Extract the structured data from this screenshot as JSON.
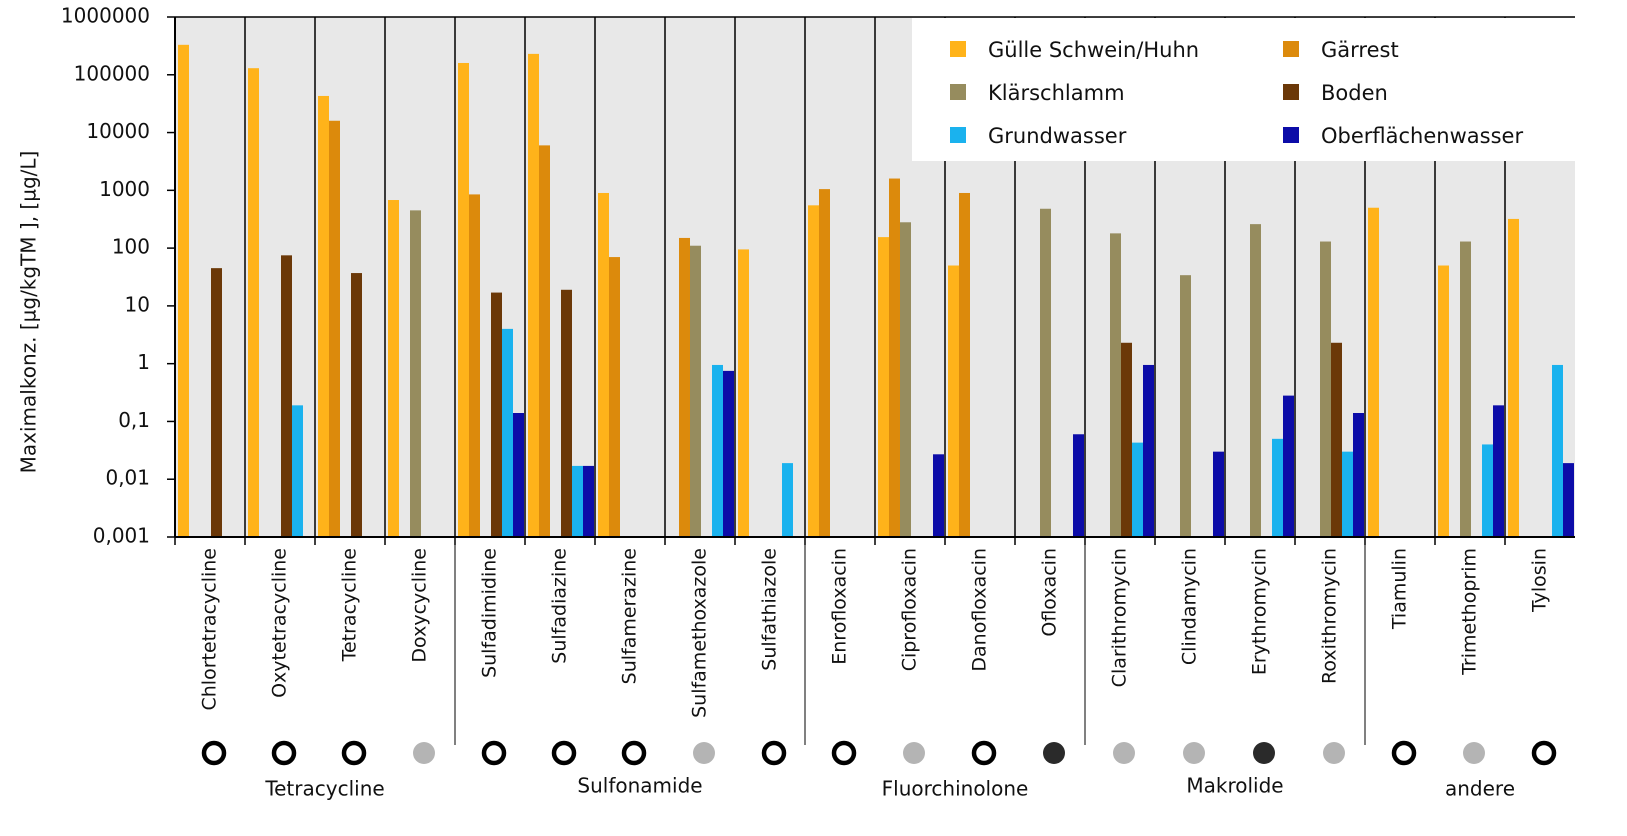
{
  "chart_data": {
    "type": "bar",
    "y_label": "Maximalkonz. [µg/kgTM ], [µg/L]",
    "log_scale": true,
    "ylim": [
      0.001,
      1000000
    ],
    "yticks": [
      1000000,
      100000,
      10000,
      1000,
      100,
      10,
      1,
      {
        "value": 0.1,
        "label": "0,1"
      },
      {
        "value": 0.01,
        "label": "0,01"
      },
      {
        "value": 0.001,
        "label": "0,001"
      }
    ],
    "legend": "upper right",
    "categories": [
      "Chlortetracycline",
      "Oxytetracycline",
      "Tetracycline",
      "Doxycycline",
      "Sulfadimidine",
      "Sulfadiazine",
      "Sulfamerazine",
      "Sulfamethoxazole",
      "Sulfathiazole",
      "Enrofloxacin",
      "Ciprofloxacin",
      "Danofloxacin",
      "Ofloxacin",
      "Clarithromycin",
      "Clindamycin",
      "Erythromycin",
      "Roxithromycin",
      "Tiamulin",
      "Trimethoprim",
      "Tylosin"
    ],
    "marker_colors": [
      "none",
      "none",
      "none",
      "#b4b4b4",
      "none",
      "none",
      "none",
      "#b4b4b4",
      "none",
      "none",
      "#b4b4b4",
      "none",
      "#2a2a2a",
      "#b4b4b4",
      "#b4b4b4",
      "#2a2a2a",
      "#b4b4b4",
      "none",
      "#b4b4b4",
      "none"
    ],
    "groups": [
      {
        "label": "Tetracycline",
        "count": 4
      },
      {
        "label": "Sulfonamide",
        "count": 5
      },
      {
        "label": "Fluorchinolone",
        "count": 4
      },
      {
        "label": "Makrolide",
        "count": 4
      },
      {
        "label": "andere",
        "count": 3
      }
    ],
    "series": [
      {
        "name": "Gülle Schwein/Huhn",
        "color": "#ffb31a",
        "values": [
          330000,
          130000,
          43000,
          680,
          160000,
          230000,
          900,
          null,
          95,
          550,
          155,
          50,
          null,
          null,
          null,
          null,
          null,
          500,
          50,
          320
        ]
      },
      {
        "name": "Gärrest",
        "color": "#dc8a0c",
        "values": [
          null,
          null,
          16000,
          null,
          850,
          6000,
          70,
          150,
          null,
          1050,
          1600,
          900,
          null,
          null,
          null,
          null,
          null,
          null,
          null,
          null
        ]
      },
      {
        "name": "Klärschlamm",
        "color": "#968c5e",
        "values": [
          null,
          null,
          null,
          450,
          null,
          null,
          null,
          110,
          null,
          null,
          280,
          null,
          480,
          180,
          34,
          260,
          130,
          null,
          130,
          null
        ]
      },
      {
        "name": "Boden",
        "color": "#6b3808",
        "values": [
          45,
          75,
          37,
          null,
          17,
          19,
          null,
          null,
          null,
          null,
          null,
          null,
          null,
          2.3,
          null,
          null,
          2.3,
          null,
          null,
          null
        ]
      },
      {
        "name": "Grundwasser",
        "color": "#1ab2ee",
        "values": [
          null,
          0.19,
          null,
          null,
          4,
          0.017,
          null,
          0.95,
          0.019,
          null,
          null,
          null,
          null,
          0.043,
          null,
          0.05,
          0.03,
          null,
          0.04,
          0.95
        ]
      },
      {
        "name": "Oberflächenwasser",
        "color": "#0c0ca8",
        "values": [
          null,
          null,
          null,
          null,
          0.14,
          0.017,
          null,
          0.75,
          null,
          null,
          0.027,
          null,
          0.06,
          0.95,
          0.03,
          0.28,
          0.14,
          null,
          0.19,
          0.019
        ]
      }
    ]
  }
}
